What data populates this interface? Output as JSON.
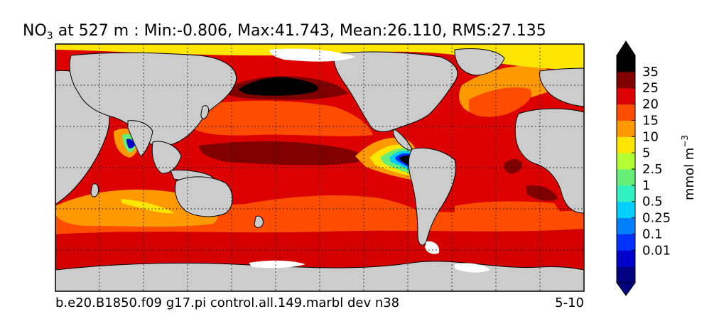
{
  "title": {
    "variable": "NO",
    "subscript": "3",
    "rest": " at 527 m : Min:-0.806, Max:41.743, Mean:26.110, RMS:27.135"
  },
  "footer": {
    "case_name": "b.e20.B1850.f09 g17.pi control.all.149.marbl dev n38",
    "period": "5-10"
  },
  "colorbar": {
    "unit_base": "mmol m",
    "unit_exp": "−3",
    "levels": [
      "35",
      "25",
      "20",
      "15",
      "10",
      "5",
      "2.5",
      "1",
      "0.5",
      "0.25",
      "0.1",
      "0.01"
    ],
    "colors": [
      "#000080",
      "#0000cc",
      "#0033ff",
      "#0080ff",
      "#00cfff",
      "#33f0c0",
      "#66ee77",
      "#b2ff33",
      "#ffe600",
      "#ff9900",
      "#ff4d00",
      "#dd0000",
      "#800000",
      "#000000"
    ]
  },
  "map": {
    "land_color": "#cccccc",
    "ice_color": "#ffffff",
    "ocean_base_color": "#dd0000",
    "grid": true
  }
}
